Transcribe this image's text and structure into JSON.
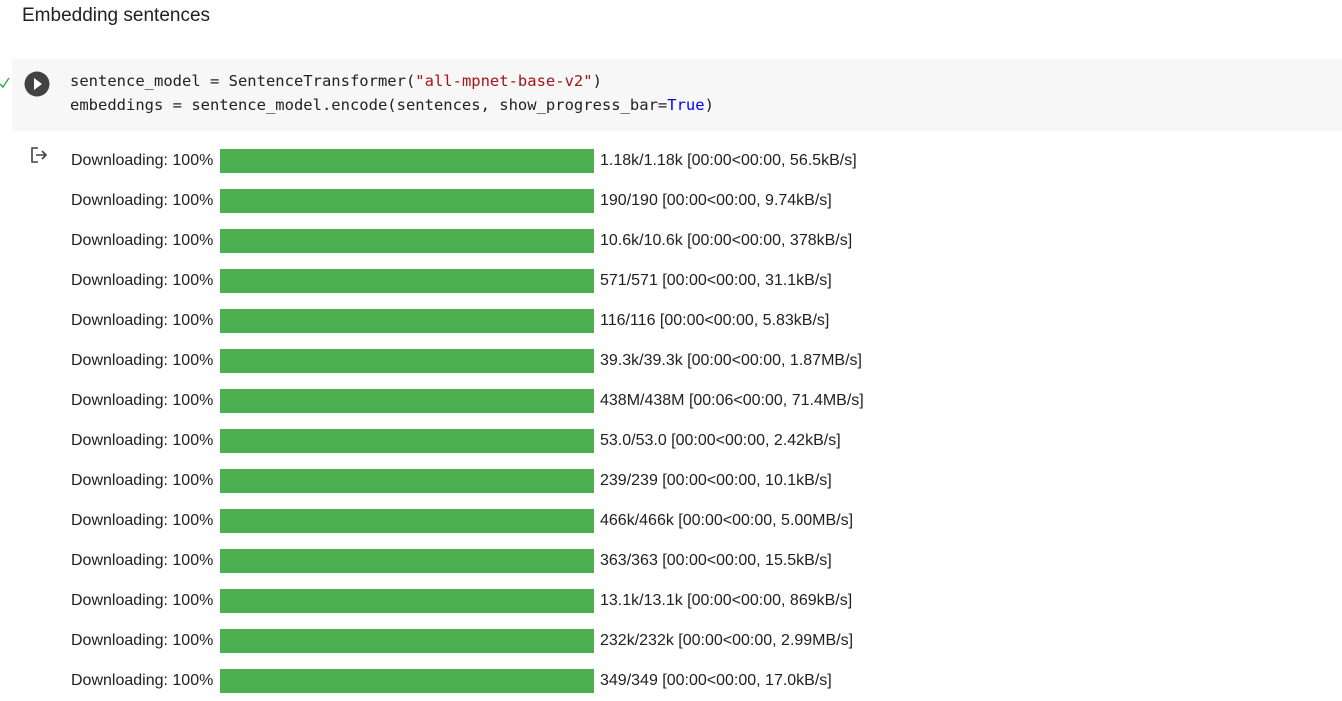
{
  "heading": "Embedding sentences",
  "code": {
    "lines": [
      [
        "sentence_model = SentenceTransformer(",
        "\"all-mpnet-base-v2\"",
        ")"
      ],
      [
        "embeddings = sentence_model.encode(sentences, show_progress_bar=",
        "True",
        ")"
      ]
    ]
  },
  "output": {
    "rows": [
      {
        "label": "Downloading:",
        "percent": {
          "value": 100,
          "label": "100%"
        },
        "stats": "1.18k/1.18k [00:00<00:00, 56.5kB/s]"
      },
      {
        "label": "Downloading:",
        "percent": {
          "value": 100,
          "label": "100%"
        },
        "stats": "190/190 [00:00<00:00, 9.74kB/s]"
      },
      {
        "label": "Downloading:",
        "percent": {
          "value": 100,
          "label": "100%"
        },
        "stats": "10.6k/10.6k [00:00<00:00, 378kB/s]"
      },
      {
        "label": "Downloading:",
        "percent": {
          "value": 100,
          "label": "100%"
        },
        "stats": "571/571 [00:00<00:00, 31.1kB/s]"
      },
      {
        "label": "Downloading:",
        "percent": {
          "value": 100,
          "label": "100%"
        },
        "stats": "116/116 [00:00<00:00, 5.83kB/s]"
      },
      {
        "label": "Downloading:",
        "percent": {
          "value": 100,
          "label": "100%"
        },
        "stats": "39.3k/39.3k [00:00<00:00, 1.87MB/s]"
      },
      {
        "label": "Downloading:",
        "percent": {
          "value": 100,
          "label": "100%"
        },
        "stats": "438M/438M [00:06<00:00, 71.4MB/s]"
      },
      {
        "label": "Downloading:",
        "percent": {
          "value": 100,
          "label": "100%"
        },
        "stats": "53.0/53.0 [00:00<00:00, 2.42kB/s]"
      },
      {
        "label": "Downloading:",
        "percent": {
          "value": 100,
          "label": "100%"
        },
        "stats": "239/239 [00:00<00:00, 10.1kB/s]"
      },
      {
        "label": "Downloading:",
        "percent": {
          "value": 100,
          "label": "100%"
        },
        "stats": "466k/466k [00:00<00:00, 5.00MB/s]"
      },
      {
        "label": "Downloading:",
        "percent": {
          "value": 100,
          "label": "100%"
        },
        "stats": "363/363 [00:00<00:00, 15.5kB/s]"
      },
      {
        "label": "Downloading:",
        "percent": {
          "value": 100,
          "label": "100%"
        },
        "stats": "13.1k/13.1k [00:00<00:00, 869kB/s]"
      },
      {
        "label": "Downloading:",
        "percent": {
          "value": 100,
          "label": "100%"
        },
        "stats": "232k/232k [00:00<00:00, 2.99MB/s]"
      },
      {
        "label": "Downloading:",
        "percent": {
          "value": 100,
          "label": "100%"
        },
        "stats": "349/349 [00:00<00:00, 17.0kB/s]"
      }
    ]
  }
}
